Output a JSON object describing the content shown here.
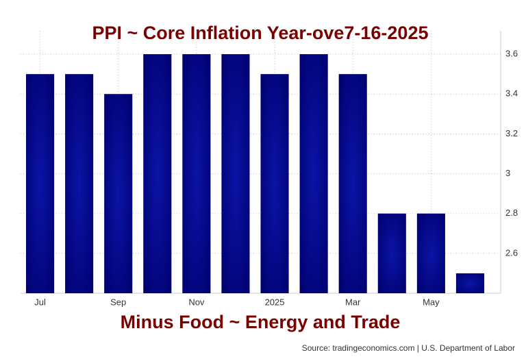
{
  "chart_data": {
    "type": "bar",
    "title": "PPI ~ Core Inflation Year-ove7-16-2025",
    "subtitle": "Minus Food ~ Energy and Trade",
    "source": "Source: tradingeconomics.com | U.S. Department of Labor",
    "categories": [
      "Jul",
      null,
      "Sep",
      null,
      "Nov",
      null,
      "2025",
      null,
      "Mar",
      null,
      "May",
      null
    ],
    "values": [
      3.5,
      3.5,
      3.4,
      3.6,
      3.6,
      3.6,
      3.5,
      3.6,
      3.5,
      2.8,
      2.8,
      2.5
    ],
    "color": "#0a14a6",
    "ylim": [
      2.4,
      3.7
    ],
    "yticks": [
      2.6,
      2.8,
      3.0,
      3.2,
      3.4,
      3.6
    ],
    "grid": true
  }
}
